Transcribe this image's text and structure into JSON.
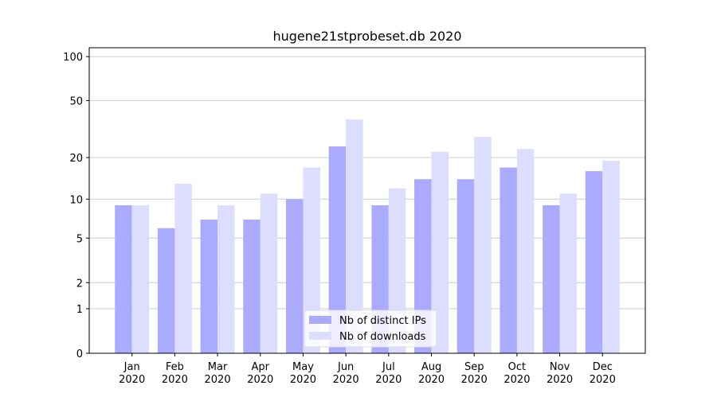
{
  "chart_data": {
    "type": "bar",
    "title": "hugene21stprobeset.db 2020",
    "categories": [
      "Jan\n2020",
      "Feb\n2020",
      "Mar\n2020",
      "Apr\n2020",
      "May\n2020",
      "Jun\n2020",
      "Jul\n2020",
      "Aug\n2020",
      "Sep\n2020",
      "Oct\n2020",
      "Nov\n2020",
      "Dec\n2020"
    ],
    "series": [
      {
        "name": "Nb of distinct IPs",
        "color": "#aaaaff",
        "values": [
          9,
          6,
          7,
          7,
          10,
          24,
          9,
          14,
          14,
          17,
          9,
          16
        ]
      },
      {
        "name": "Nb of downloads",
        "color": "#ddddff",
        "values": [
          9,
          13,
          9,
          11,
          17,
          37,
          12,
          22,
          28,
          23,
          11,
          19
        ]
      }
    ],
    "yscale": "log1p",
    "ylim": [
      0,
      115
    ],
    "yticks": [
      0,
      1,
      2,
      5,
      10,
      20,
      50,
      100
    ],
    "grid": true,
    "legend": "lower center"
  }
}
